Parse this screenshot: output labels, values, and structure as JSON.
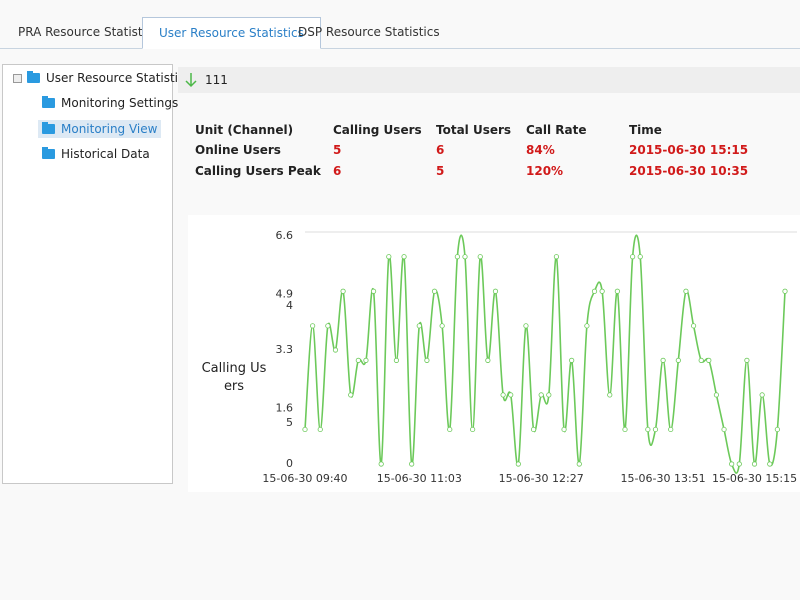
{
  "tabs": [
    "PRA Resource Statistics",
    "User Resource Statistics",
    "DSP Resource Statistics"
  ],
  "active_tab": 1,
  "tree": {
    "root": "User Resource Statistics",
    "children": [
      "Monitoring Settings",
      "Monitoring View",
      "Historical Data"
    ],
    "selected_item": 1
  },
  "toolbar": {
    "label": "111"
  },
  "table": {
    "header": [
      "Unit (Channel)",
      "Calling Users",
      "Total Users",
      "Call Rate",
      "Time"
    ],
    "rows": [
      [
        "Online Users",
        "5",
        "6",
        "84%",
        "2015-06-30 15:15"
      ],
      [
        "Calling Users Peak",
        "6",
        "5",
        "120%",
        "2015-06-30 10:35"
      ]
    ]
  },
  "chart_data": {
    "type": "line",
    "y_axis_label": "Calling Users",
    "categories": [
      "15-06-30 09:40",
      null,
      null,
      null,
      null,
      null,
      null,
      null,
      null,
      null,
      null,
      null,
      null,
      null,
      null,
      "15-06-30 11:03",
      null,
      null,
      null,
      null,
      null,
      null,
      null,
      null,
      null,
      null,
      null,
      null,
      null,
      null,
      null,
      "15-06-30 12:27",
      null,
      null,
      null,
      null,
      null,
      null,
      null,
      null,
      null,
      null,
      null,
      null,
      null,
      null,
      null,
      "15-06-30 13:51",
      null,
      null,
      null,
      null,
      null,
      null,
      null,
      null,
      null,
      null,
      null,
      "15-06-30 15:15",
      null,
      null,
      null,
      null
    ],
    "series": [
      {
        "name": "Calling Users",
        "color": "#6cc95a",
        "values": [
          1,
          4,
          1,
          4,
          3.3,
          5,
          2,
          3,
          3,
          5,
          0,
          6,
          3,
          6,
          0,
          4,
          3,
          5,
          4,
          1,
          6,
          6,
          1,
          6,
          3,
          5,
          2,
          2,
          0,
          4,
          1,
          2,
          2,
          6,
          1,
          3,
          0,
          4,
          5,
          5,
          2,
          5,
          1,
          6,
          6,
          1,
          1,
          3,
          1,
          3,
          5,
          4,
          3,
          3,
          2,
          1,
          0,
          0,
          3,
          0,
          2,
          0,
          1,
          5
        ]
      }
    ],
    "ylim": [
      0,
      6.6
    ],
    "yticks": [
      0,
      1.6,
      3.3,
      4.9,
      6.6
    ],
    "overlay_tick_labels": [
      "5",
      "4"
    ]
  }
}
